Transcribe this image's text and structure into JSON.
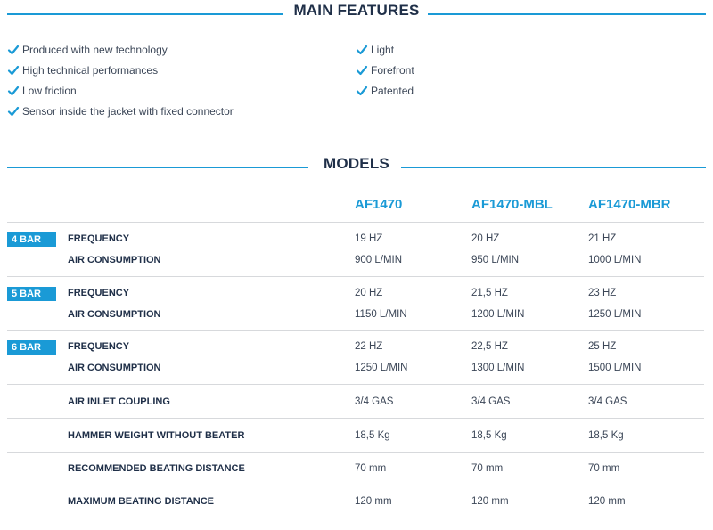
{
  "features": {
    "title": "MAIN FEATURES",
    "left": [
      "Produced with new technology",
      "High technical performances",
      "Low friction",
      "Sensor inside the jacket with fixed connector"
    ],
    "right": [
      "Light",
      "Forefront",
      "Patented"
    ],
    "icon": "check-icon",
    "accent_color": "#1a9ad6"
  },
  "models": {
    "title": "MODELS",
    "columns": [
      "AF1470",
      "AF1470-MBL",
      "AF1470-MBR"
    ],
    "pressure_groups": [
      {
        "badge": "4 BAR",
        "frequency_label": "FREQUENCY",
        "frequency": [
          "19 HZ",
          "20 HZ",
          "21 HZ"
        ],
        "air_label": "AIR CONSUMPTION",
        "air": [
          "900 L/MIN",
          "950 L/MIN",
          "1000 L/MIN"
        ]
      },
      {
        "badge": "5 BAR",
        "frequency_label": "FREQUENCY",
        "frequency": [
          "20 HZ",
          "21,5 HZ",
          "23 HZ"
        ],
        "air_label": "AIR CONSUMPTION",
        "air": [
          "1150 L/MIN",
          "1200 L/MIN",
          "1250 L/MIN"
        ]
      },
      {
        "badge": "6 BAR",
        "frequency_label": "FREQUENCY",
        "frequency": [
          "22 HZ",
          "22,5 HZ",
          "25 HZ"
        ],
        "air_label": "AIR CONSUMPTION",
        "air": [
          "1250 L/MIN",
          "1300 L/MIN",
          "1500 L/MIN"
        ]
      }
    ],
    "specs": [
      {
        "label": "AIR INLET COUPLING",
        "values": [
          "3/4 GAS",
          "3/4 GAS",
          "3/4 GAS"
        ]
      },
      {
        "label": "HAMMER WEIGHT WITHOUT BEATER",
        "values": [
          "18,5 Kg",
          "18,5 Kg",
          "18,5 Kg"
        ]
      },
      {
        "label": "RECOMMENDED BEATING DISTANCE",
        "values": [
          "70 mm",
          "70 mm",
          "70 mm"
        ]
      },
      {
        "label": "MAXIMUM BEATING DISTANCE",
        "values": [
          "120 mm",
          "120 mm",
          "120 mm"
        ]
      }
    ]
  }
}
